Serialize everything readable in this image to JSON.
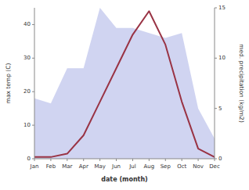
{
  "chart_data": {
    "type": "line",
    "xlabel": "date (month)",
    "ylabel": "max temp (C)",
    "y2label": "med. precipitation (kg/m2)",
    "categories": [
      "Jan",
      "Feb",
      "Mar",
      "Apr",
      "May",
      "Jun",
      "Jul",
      "Aug",
      "Sep",
      "Oct",
      "Nov",
      "Dec"
    ],
    "series": [
      {
        "type": "area",
        "axis": "y2",
        "color": "#b0b8e8",
        "values": [
          6,
          5.5,
          9,
          9,
          15,
          13,
          13,
          12.5,
          12,
          12.5,
          5,
          2
        ]
      },
      {
        "type": "line",
        "color": "#993344",
        "values": [
          0.5,
          0.5,
          1.5,
          7,
          17,
          27,
          37,
          44,
          34,
          17,
          3,
          0.5
        ]
      }
    ],
    "ylim": [
      0,
      45
    ],
    "yticks": [
      0,
      10,
      20,
      30,
      40
    ],
    "y2lim": [
      0,
      15
    ],
    "y2ticks": [
      0,
      5,
      10,
      15
    ],
    "grid": false
  }
}
